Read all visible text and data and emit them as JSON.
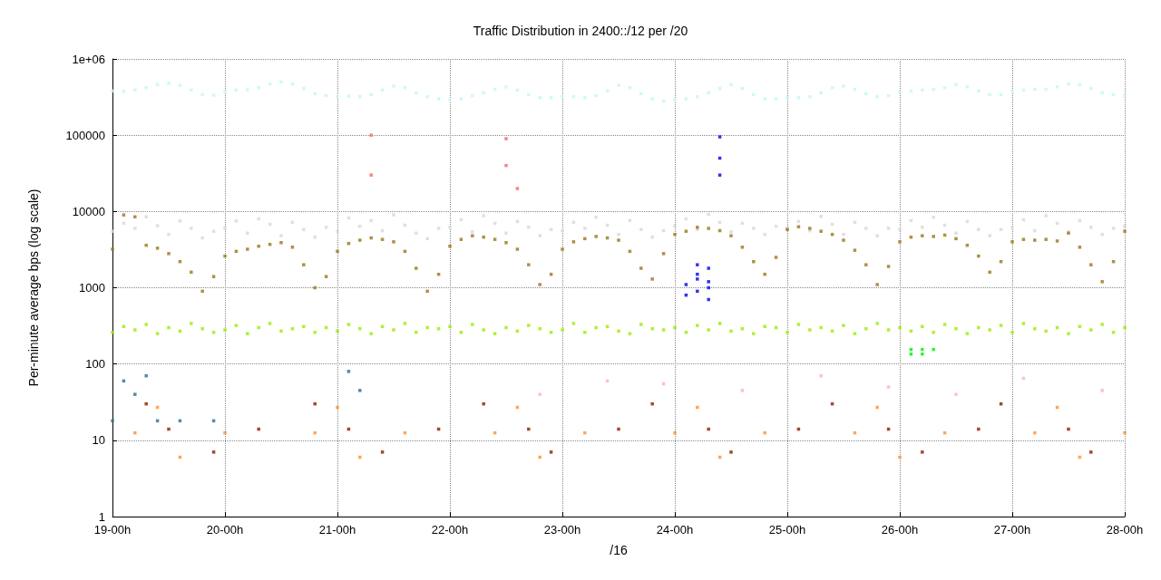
{
  "chart_data": {
    "type": "scatter",
    "title": "Traffic Distribution in 2400::/12 per /20",
    "xlabel": "/16",
    "ylabel": "Per-minute average bps (log scale)",
    "log": "y",
    "grid": true,
    "marker": "square",
    "categories": [
      "19-00h",
      null,
      null,
      null,
      null,
      null,
      null,
      null,
      null,
      null,
      "20-00h",
      null,
      null,
      null,
      null,
      null,
      null,
      null,
      null,
      null,
      "21-00h",
      null,
      null,
      null,
      null,
      null,
      null,
      null,
      null,
      null,
      "22-00h",
      null,
      null,
      null,
      null,
      null,
      null,
      null,
      null,
      null,
      "23-00h",
      null,
      null,
      null,
      null,
      null,
      null,
      null,
      null,
      null,
      "24-00h",
      null,
      null,
      null,
      null,
      null,
      null,
      null,
      null,
      null,
      "25-00h",
      null,
      null,
      null,
      null,
      null,
      null,
      null,
      null,
      null,
      "26-00h",
      null,
      null,
      null,
      null,
      null,
      null,
      null,
      null,
      null,
      "27-00h",
      null,
      null,
      null,
      null,
      null,
      null,
      null,
      null,
      null,
      "28-00h"
    ],
    "ylim": [
      1,
      1000000
    ],
    "yticks": [
      1,
      10,
      100,
      1000,
      10000,
      100000,
      {
        "value": 1000000,
        "label": "1e+06"
      }
    ],
    "series": [
      {
        "color": "#c4f6f8",
        "values": [
          380000,
          375000,
          390000,
          420000,
          460000,
          480000,
          450000,
          390000,
          340000,
          335000,
          380000,
          390000,
          395000,
          420000,
          470000,
          500000,
          470000,
          410000,
          350000,
          330000,
          320000,
          325000,
          320000,
          340000,
          390000,
          440000,
          420000,
          360000,
          320000,
          300000,
          290000,
          300000,
          330000,
          360000,
          400000,
          430000,
          390000,
          340000,
          310000,
          310000,
          320000,
          320000,
          310000,
          330000,
          380000,
          450000,
          420000,
          350000,
          300000,
          280000,
          290000,
          300000,
          320000,
          360000,
          410000,
          460000,
          410000,
          340000,
          300000,
          300000,
          310000,
          310000,
          320000,
          360000,
          420000,
          440000,
          400000,
          350000,
          320000,
          330000,
          370000,
          380000,
          390000,
          400000,
          420000,
          460000,
          430000,
          380000,
          340000,
          340000,
          380000,
          390000,
          400000,
          400000,
          430000,
          470000,
          460000,
          410000,
          360000,
          340000,
          330000
        ]
      },
      {
        "color": "#d8d8d8",
        "values": [
          5500,
          7000,
          6000,
          8500,
          6500,
          5000,
          7500,
          6000,
          4500,
          5500,
          6000,
          7500,
          5200,
          8000,
          6800,
          4800,
          7200,
          5800,
          4600,
          6200,
          5400,
          8200,
          6400,
          7600,
          5600,
          9000,
          6600,
          5200,
          4400,
          6000,
          6200,
          7800,
          5400,
          8800,
          7000,
          5200,
          7400,
          6200,
          4800,
          5800,
          5600,
          7200,
          6000,
          8400,
          6600,
          5000,
          7600,
          5800,
          4600,
          5600,
          6400,
          8000,
          5800,
          9200,
          7200,
          5400,
          7000,
          6000,
          5000,
          6400,
          6000,
          7400,
          5600,
          8600,
          6800,
          5000,
          7200,
          6000,
          4800,
          6000,
          5800,
          7600,
          6200,
          8400,
          6600,
          5200,
          7400,
          5800,
          4800,
          5800,
          6200,
          7800,
          5600,
          8800,
          7000,
          5400,
          7600,
          6200,
          5000,
          6000,
          6400
        ]
      },
      {
        "color": "#9a7616",
        "values": [
          3200,
          9000,
          8500,
          3600,
          3300,
          2800,
          2200,
          1600,
          900,
          1400,
          2600,
          3000,
          3200,
          3500,
          3700,
          3900,
          3400,
          2000,
          1000,
          1400,
          3000,
          3800,
          4200,
          4500,
          4300,
          4000,
          3000,
          1800,
          900,
          1500,
          3500,
          4300,
          4800,
          4600,
          4300,
          3900,
          3200,
          2000,
          1100,
          1500,
          3200,
          4000,
          4400,
          4700,
          4500,
          4200,
          3000,
          1800,
          1300,
          2800,
          5000,
          5500,
          6200,
          6000,
          5600,
          4800,
          3400,
          2200,
          1500,
          2500,
          5800,
          6300,
          6000,
          5500,
          5000,
          4200,
          3100,
          2000,
          1100,
          1900,
          4000,
          4600,
          4800,
          4700,
          4900,
          4400,
          3600,
          2600,
          1600,
          2200,
          4000,
          4300,
          4200,
          4300,
          4100,
          5200,
          3400,
          2000,
          1200,
          2200,
          5500
        ]
      },
      {
        "color": "#99ee00",
        "values": [
          260,
          310,
          280,
          330,
          250,
          300,
          270,
          340,
          290,
          260,
          280,
          320,
          250,
          300,
          340,
          270,
          290,
          310,
          260,
          300,
          270,
          330,
          290,
          250,
          310,
          280,
          340,
          260,
          300,
          290,
          310,
          260,
          330,
          280,
          250,
          300,
          270,
          320,
          290,
          260,
          280,
          340,
          260,
          300,
          310,
          270,
          250,
          330,
          290,
          280,
          300,
          260,
          320,
          280,
          340,
          270,
          290,
          250,
          310,
          300,
          260,
          330,
          280,
          300,
          270,
          320,
          250,
          290,
          340,
          280,
          300,
          270,
          310,
          260,
          330,
          290,
          250,
          300,
          280,
          320,
          260,
          340,
          290,
          270,
          300,
          250,
          310,
          280,
          330,
          260,
          300
        ]
      },
      {
        "color": "#0000ee",
        "values": [
          null,
          null,
          null,
          null,
          null,
          null,
          null,
          null,
          null,
          null,
          null,
          null,
          null,
          null,
          null,
          null,
          null,
          null,
          null,
          null,
          null,
          null,
          null,
          null,
          null,
          null,
          null,
          null,
          null,
          null,
          null,
          null,
          null,
          null,
          null,
          null,
          null,
          null,
          null,
          null,
          null,
          null,
          null,
          null,
          null,
          null,
          null,
          null,
          null,
          null,
          null,
          1100,
          1500,
          1800,
          95000,
          null,
          null,
          null,
          null,
          null,
          null,
          null,
          null,
          null,
          null,
          null,
          null,
          null,
          null,
          null,
          null,
          null,
          null,
          null,
          null,
          null,
          null,
          null,
          null,
          null,
          null,
          null,
          null,
          null,
          null,
          null,
          null,
          null,
          null,
          null,
          null
        ]
      },
      {
        "color": "#0000ee",
        "values": [
          null,
          null,
          null,
          null,
          null,
          null,
          null,
          null,
          null,
          null,
          null,
          null,
          null,
          null,
          null,
          null,
          null,
          null,
          null,
          null,
          null,
          null,
          null,
          null,
          null,
          null,
          null,
          null,
          null,
          null,
          null,
          null,
          null,
          null,
          null,
          null,
          null,
          null,
          null,
          null,
          null,
          null,
          null,
          null,
          null,
          null,
          null,
          null,
          null,
          null,
          null,
          800,
          900,
          1000,
          50000,
          null,
          null,
          null,
          null,
          null,
          null,
          null,
          null,
          null,
          null,
          null,
          null,
          null,
          null,
          null,
          null,
          null,
          null,
          null,
          null,
          null,
          null,
          null,
          null,
          null,
          null,
          null,
          null,
          null,
          null,
          null,
          null,
          null,
          null,
          null,
          null
        ]
      },
      {
        "color": "#0000ee",
        "values": [
          null,
          null,
          null,
          null,
          null,
          null,
          null,
          null,
          null,
          null,
          null,
          null,
          null,
          null,
          null,
          null,
          null,
          null,
          null,
          null,
          null,
          null,
          null,
          null,
          null,
          null,
          null,
          null,
          null,
          null,
          null,
          null,
          null,
          null,
          null,
          null,
          null,
          null,
          null,
          null,
          null,
          null,
          null,
          null,
          null,
          null,
          null,
          null,
          null,
          null,
          null,
          null,
          1300,
          700,
          30000,
          null,
          null,
          null,
          null,
          null,
          null,
          null,
          null,
          null,
          null,
          null,
          null,
          null,
          null,
          null,
          null,
          null,
          null,
          null,
          null,
          null,
          null,
          null,
          null,
          null,
          null,
          null,
          null,
          null,
          null,
          null,
          null,
          null,
          null,
          null,
          null
        ]
      },
      {
        "color": "#0000ee",
        "values": [
          null,
          null,
          null,
          null,
          null,
          null,
          null,
          null,
          null,
          null,
          null,
          null,
          null,
          null,
          null,
          null,
          null,
          null,
          null,
          null,
          null,
          null,
          null,
          null,
          null,
          null,
          null,
          null,
          null,
          null,
          null,
          null,
          null,
          null,
          null,
          null,
          null,
          null,
          null,
          null,
          null,
          null,
          null,
          null,
          null,
          null,
          null,
          null,
          null,
          null,
          null,
          null,
          2000,
          1200,
          null,
          null,
          null,
          null,
          null,
          null,
          null,
          null,
          null,
          null,
          null,
          null,
          null,
          null,
          null,
          null,
          null,
          null,
          null,
          null,
          null,
          null,
          null,
          null,
          null,
          null,
          null,
          null,
          null,
          null,
          null,
          null,
          null,
          null,
          null,
          null,
          null
        ]
      },
      {
        "color": "#8b1a00",
        "values": [
          null,
          null,
          null,
          30,
          null,
          14,
          null,
          null,
          null,
          7,
          null,
          null,
          null,
          14,
          null,
          null,
          null,
          null,
          30,
          null,
          null,
          14,
          null,
          null,
          7,
          null,
          null,
          null,
          null,
          14,
          null,
          null,
          null,
          30,
          null,
          null,
          null,
          14,
          null,
          7,
          null,
          null,
          null,
          null,
          null,
          14,
          null,
          null,
          30,
          null,
          null,
          null,
          null,
          14,
          null,
          7,
          null,
          null,
          null,
          null,
          null,
          14,
          null,
          null,
          30,
          null,
          null,
          null,
          null,
          14,
          null,
          null,
          7,
          null,
          null,
          null,
          null,
          14,
          null,
          30,
          null,
          null,
          null,
          null,
          null,
          14,
          null,
          7,
          null,
          null,
          null
        ]
      },
      {
        "color": "#ff9030",
        "values": [
          null,
          null,
          12.5,
          null,
          27,
          null,
          6,
          null,
          null,
          null,
          12.5,
          null,
          null,
          null,
          null,
          null,
          null,
          null,
          12.5,
          null,
          27,
          null,
          6,
          null,
          null,
          null,
          12.5,
          null,
          null,
          null,
          null,
          null,
          null,
          null,
          12.5,
          null,
          27,
          null,
          6,
          null,
          null,
          null,
          12.5,
          null,
          null,
          null,
          null,
          null,
          null,
          null,
          12.5,
          null,
          27,
          null,
          6,
          null,
          null,
          null,
          12.5,
          null,
          null,
          null,
          null,
          null,
          null,
          null,
          12.5,
          null,
          27,
          null,
          6,
          null,
          null,
          null,
          12.5,
          null,
          null,
          null,
          null,
          null,
          null,
          null,
          12.5,
          null,
          27,
          null,
          6,
          null,
          null,
          null,
          12.5
        ]
      },
      {
        "color": "#2a6f8f",
        "values": [
          18,
          60,
          40,
          70,
          18,
          null,
          18,
          null,
          null,
          18,
          null,
          null,
          null,
          null,
          null,
          null,
          null,
          null,
          null,
          null,
          null,
          80,
          45,
          null,
          null,
          null,
          null,
          null,
          null,
          null,
          null,
          null,
          null,
          null,
          null,
          null,
          null,
          null,
          null,
          null,
          null,
          null,
          null,
          null,
          null,
          null,
          null,
          null,
          null,
          null,
          null,
          null,
          null,
          null,
          null,
          null,
          null,
          null,
          null,
          null,
          null,
          null,
          null,
          null,
          null,
          null,
          null,
          null,
          null,
          null,
          null,
          null,
          null,
          null,
          null,
          null,
          null,
          null,
          null,
          null,
          null,
          null,
          null,
          null,
          null,
          null,
          null,
          null,
          null,
          null,
          null
        ]
      },
      {
        "color": "#ff6060",
        "values": [
          null,
          null,
          null,
          null,
          null,
          null,
          null,
          null,
          null,
          null,
          null,
          null,
          null,
          null,
          null,
          null,
          null,
          null,
          null,
          null,
          null,
          null,
          null,
          100000,
          null,
          null,
          null,
          null,
          null,
          null,
          null,
          null,
          null,
          null,
          null,
          90000,
          null,
          null,
          null,
          null,
          null,
          null,
          null,
          null,
          null,
          null,
          null,
          null,
          null,
          null,
          null,
          null,
          null,
          null,
          null,
          null,
          null,
          null,
          null,
          null,
          null,
          null,
          null,
          null,
          null,
          null,
          null,
          null,
          null,
          null,
          null,
          null,
          null,
          null,
          null,
          null,
          null,
          null,
          null,
          null,
          null,
          null,
          null,
          null,
          null,
          null,
          null,
          null,
          null,
          null,
          null
        ]
      },
      {
        "color": "#ff6060",
        "values": [
          null,
          null,
          null,
          null,
          null,
          null,
          null,
          null,
          null,
          null,
          null,
          null,
          null,
          null,
          null,
          null,
          null,
          null,
          null,
          null,
          null,
          null,
          null,
          30000,
          null,
          null,
          null,
          null,
          null,
          null,
          null,
          null,
          null,
          null,
          null,
          40000,
          20000,
          null,
          null,
          null,
          null,
          null,
          null,
          null,
          null,
          null,
          null,
          null,
          null,
          null,
          null,
          null,
          null,
          null,
          null,
          null,
          null,
          null,
          null,
          null,
          null,
          null,
          null,
          null,
          null,
          null,
          null,
          null,
          null,
          null,
          null,
          null,
          null,
          null,
          null,
          null,
          null,
          null,
          null,
          null,
          null,
          null,
          null,
          null,
          null,
          null,
          null,
          null,
          null,
          null,
          null
        ]
      },
      {
        "color": "#ffb0c0",
        "values": [
          null,
          null,
          null,
          null,
          null,
          null,
          null,
          null,
          null,
          null,
          null,
          null,
          null,
          null,
          null,
          null,
          null,
          null,
          null,
          null,
          null,
          null,
          null,
          null,
          null,
          null,
          null,
          null,
          null,
          null,
          null,
          null,
          null,
          null,
          null,
          null,
          null,
          null,
          40,
          null,
          null,
          null,
          null,
          null,
          60,
          null,
          null,
          null,
          null,
          55,
          null,
          null,
          null,
          null,
          null,
          null,
          45,
          null,
          null,
          null,
          null,
          null,
          null,
          70,
          null,
          null,
          null,
          null,
          null,
          50,
          null,
          null,
          null,
          null,
          null,
          40,
          null,
          null,
          null,
          null,
          null,
          65,
          null,
          null,
          null,
          null,
          null,
          null,
          45,
          null,
          null
        ]
      },
      {
        "color": "#00ee00",
        "values": [
          null,
          null,
          null,
          null,
          null,
          null,
          null,
          null,
          null,
          null,
          null,
          null,
          null,
          null,
          null,
          null,
          null,
          null,
          null,
          null,
          null,
          null,
          null,
          null,
          null,
          null,
          null,
          null,
          null,
          null,
          null,
          null,
          null,
          null,
          null,
          null,
          null,
          null,
          null,
          null,
          null,
          null,
          null,
          null,
          null,
          null,
          null,
          null,
          null,
          null,
          null,
          null,
          null,
          null,
          null,
          null,
          null,
          null,
          null,
          null,
          null,
          null,
          null,
          null,
          null,
          null,
          null,
          null,
          null,
          null,
          null,
          155,
          155,
          155,
          null,
          null,
          null,
          null,
          null,
          null,
          null,
          null,
          null,
          null,
          null,
          null,
          null,
          null,
          null,
          null,
          null
        ]
      },
      {
        "color": "#00ee00",
        "values": [
          null,
          null,
          null,
          null,
          null,
          null,
          null,
          null,
          null,
          null,
          null,
          null,
          null,
          null,
          null,
          null,
          null,
          null,
          null,
          null,
          null,
          null,
          null,
          null,
          null,
          null,
          null,
          null,
          null,
          null,
          null,
          null,
          null,
          null,
          null,
          null,
          null,
          null,
          null,
          null,
          null,
          null,
          null,
          null,
          null,
          null,
          null,
          null,
          null,
          null,
          null,
          null,
          null,
          null,
          null,
          null,
          null,
          null,
          null,
          null,
          null,
          null,
          null,
          null,
          null,
          null,
          null,
          null,
          null,
          null,
          null,
          135,
          135,
          null,
          null,
          null,
          null,
          null,
          null,
          null,
          null,
          null,
          null,
          null,
          null,
          null,
          null,
          null,
          null,
          null,
          null
        ]
      }
    ]
  }
}
